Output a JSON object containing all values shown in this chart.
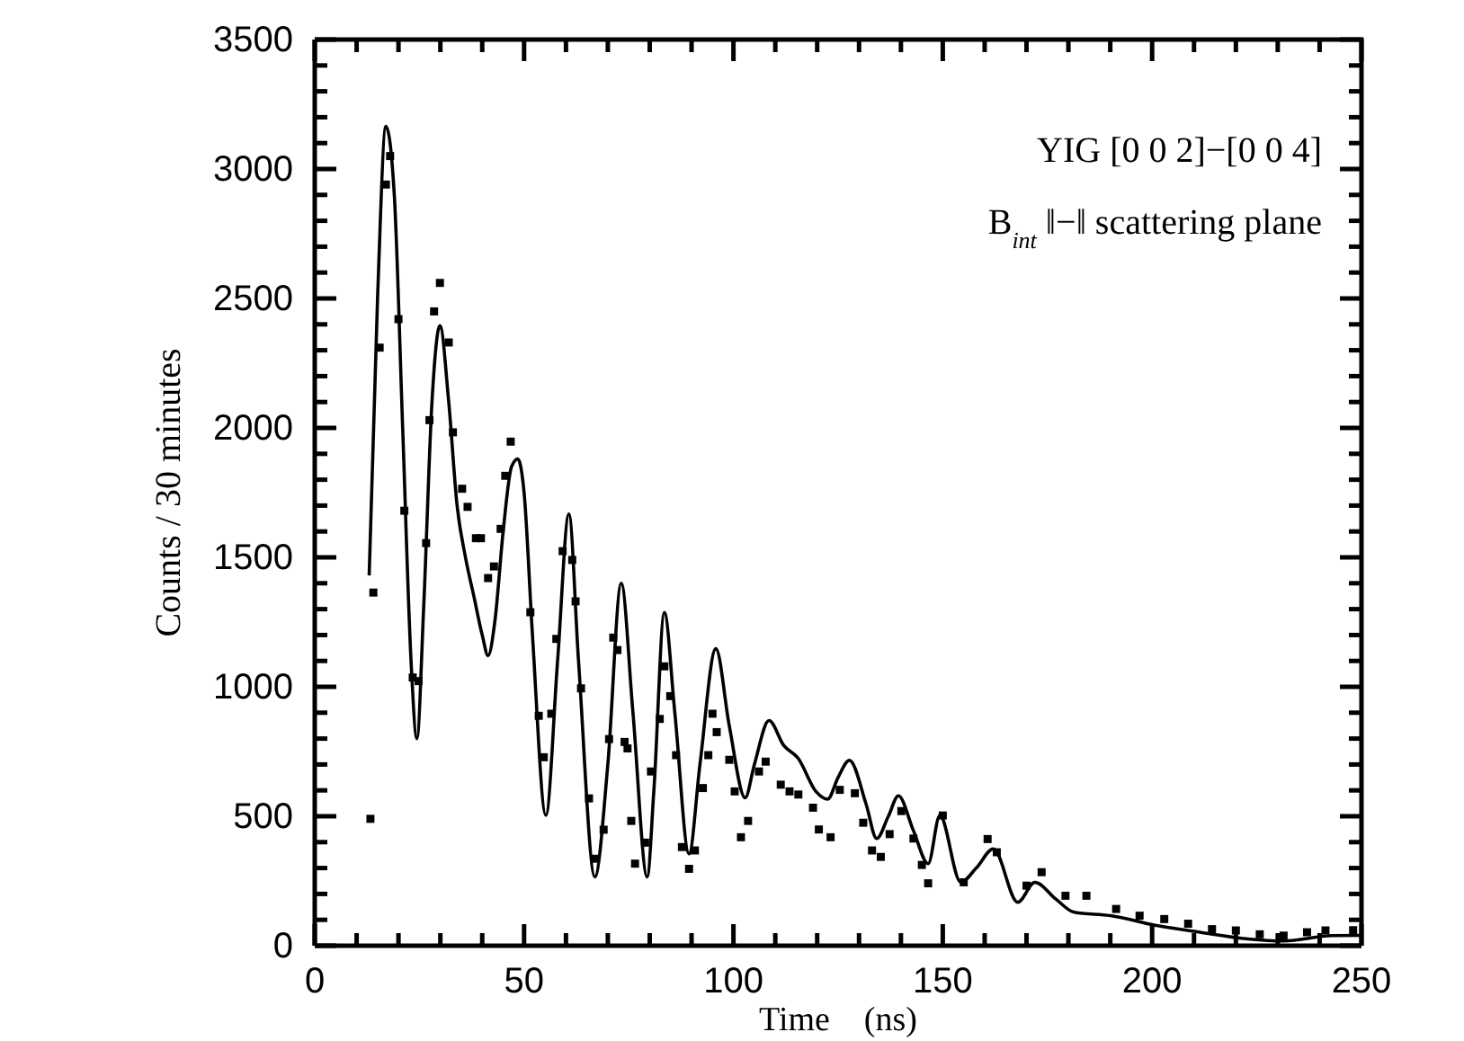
{
  "chart_data": {
    "type": "scatter",
    "xlabel": "Time    (ns)",
    "ylabel": "Counts / 30 minutes",
    "annotations": [
      "YIG [0 0 2]−[0 0 4]",
      "B$_{int}$ ‖−‖ scattering plane"
    ],
    "xlim": [
      0,
      250
    ],
    "ylim": [
      0,
      3500
    ],
    "xticks": [
      0,
      {
        "value": 10,
        "label": null
      },
      {
        "value": 20,
        "label": null
      },
      {
        "value": 30,
        "label": null
      },
      {
        "value": 40,
        "label": null
      },
      50,
      {
        "value": 60,
        "label": null
      },
      {
        "value": 70,
        "label": null
      },
      {
        "value": 80,
        "label": null
      },
      {
        "value": 90,
        "label": null
      },
      100,
      {
        "value": 110,
        "label": null
      },
      {
        "value": 120,
        "label": null
      },
      {
        "value": 130,
        "label": null
      },
      {
        "value": 140,
        "label": null
      },
      150,
      {
        "value": 160,
        "label": null
      },
      {
        "value": 170,
        "label": null
      },
      {
        "value": 180,
        "label": null
      },
      {
        "value": 190,
        "label": null
      },
      200,
      {
        "value": 210,
        "label": null
      },
      {
        "value": 220,
        "label": null
      },
      {
        "value": 230,
        "label": null
      },
      {
        "value": 240,
        "label": null
      },
      250
    ],
    "yticks": [
      0,
      {
        "value": 100,
        "label": null
      },
      {
        "value": 200,
        "label": null
      },
      {
        "value": 300,
        "label": null
      },
      {
        "value": 400,
        "label": null
      },
      500,
      {
        "value": 600,
        "label": null
      },
      {
        "value": 700,
        "label": null
      },
      {
        "value": 800,
        "label": null
      },
      {
        "value": 900,
        "label": null
      },
      1000,
      {
        "value": 1100,
        "label": null
      },
      {
        "value": 1200,
        "label": null
      },
      {
        "value": 1300,
        "label": null
      },
      {
        "value": 1400,
        "label": null
      },
      1500,
      {
        "value": 1600,
        "label": null
      },
      {
        "value": 1700,
        "label": null
      },
      {
        "value": 1800,
        "label": null
      },
      {
        "value": 1900,
        "label": null
      },
      2000,
      {
        "value": 2100,
        "label": null
      },
      {
        "value": 2200,
        "label": null
      },
      {
        "value": 2300,
        "label": null
      },
      {
        "value": 2400,
        "label": null
      },
      2500,
      {
        "value": 2600,
        "label": null
      },
      {
        "value": 2700,
        "label": null
      },
      {
        "value": 2800,
        "label": null
      },
      {
        "value": 2900,
        "label": null
      },
      3000,
      {
        "value": 3100,
        "label": null
      },
      {
        "value": 3200,
        "label": null
      },
      {
        "value": 3300,
        "label": null
      },
      {
        "value": 3400,
        "label": null
      },
      3500
    ],
    "grid": false,
    "series": [
      {
        "color": "#000000",
        "marker": "square",
        "x": [
          13.3,
          14,
          15.5,
          17,
          18,
          20,
          21.4,
          23.4,
          24.8,
          26.6,
          27.4,
          28.5,
          29.9,
          32,
          33,
          35.2,
          36.5,
          38.5,
          39.7,
          41.4,
          42.8,
          44.4,
          45.5,
          46.8,
          51.5,
          53.5,
          54.7,
          56.5,
          57.7,
          59.2,
          61.5,
          62.3,
          63.6,
          65.5,
          66.9,
          69,
          70.3,
          71.3,
          72.3,
          74,
          74.7,
          75.6,
          76.5,
          78.9,
          80.3,
          82.4,
          83.5,
          84.9,
          86.3,
          87.7,
          89.4,
          90.8,
          92.7,
          94,
          95,
          96,
          99,
          100.3,
          101.8,
          103.5,
          106.1,
          107.7,
          111.3,
          113.4,
          115.5,
          119,
          120.4,
          123.2,
          125.4,
          129,
          131,
          133.1,
          135.2,
          137.3,
          140.1,
          143,
          145,
          146.5,
          150,
          155,
          160.7,
          162.9,
          170,
          173.6,
          179.3,
          184.3,
          191.4,
          197,
          202.9,
          208.6,
          214.3,
          220,
          225.7,
          231.4,
          237,
          241.4,
          248
        ],
        "values": [
          490,
          1364,
          2310,
          2940,
          3050,
          2420,
          1680,
          1036,
          1022,
          1555,
          2030,
          2450,
          2560,
          2330,
          1983,
          1765,
          1695,
          1574,
          1574,
          1420,
          1465,
          1610,
          1815,
          1947,
          1288,
          888,
          728,
          896,
          1185,
          1524,
          1490,
          1330,
          994,
          569,
          336,
          448,
          798,
          1190,
          1142,
          787,
          762,
          482,
          317,
          398,
          673,
          876,
          1079,
          964,
          736,
          381,
          297,
          368,
          609,
          736,
          896,
          825,
          718,
          596,
          419,
          482,
          673,
          711,
          622,
          596,
          584,
          533,
          449,
          419,
          602,
          589,
          475,
          368,
          343,
          431,
          520,
          414,
          312,
          241,
          503,
          245,
          412,
          361,
          232,
          284,
          193,
          193,
          142,
          116,
          103,
          85,
          64,
          59,
          44,
          39,
          52,
          59,
          60
        ]
      },
      {
        "type": "line",
        "color": "#000000",
        "x": [
          13,
          15,
          17,
          19,
          21,
          23,
          24.4,
          26,
          28,
          29.9,
          32,
          34,
          36,
          38,
          40,
          41.4,
          43,
          45,
          47,
          48.5,
          50,
          52,
          55.2,
          58,
          60.7,
          63,
          66.9,
          70,
          73.2,
          76,
          79.4,
          81,
          83.5,
          86,
          89.4,
          92,
          95.8,
          99,
          102.8,
          105,
          108.5,
          112,
          115.5,
          119.7,
          122.5,
          125,
          127.7,
          131.7,
          134.2,
          137,
          139.4,
          143,
          146.5,
          149.3,
          154.3,
          158,
          162.1,
          167.9,
          172,
          177,
          181.4,
          190,
          201.4,
          211.4,
          222.9,
          231.4,
          243,
          250
        ],
        "values": [
          1430,
          2500,
          3165,
          2900,
          2000,
          1100,
          800,
          1300,
          2100,
          2395,
          2100,
          1700,
          1500,
          1350,
          1200,
          1120,
          1250,
          1600,
          1850,
          1880,
          1750,
          1200,
          504,
          1100,
          1667,
          1100,
          266,
          700,
          1400,
          900,
          266,
          600,
          1287,
          900,
          355,
          700,
          1147,
          850,
          571,
          700,
          870,
          774,
          723,
          596,
          566,
          650,
          716,
          546,
          414,
          500,
          579,
          444,
          317,
          503,
          245,
          300,
          374,
          168,
          245,
          180,
          129,
          116,
          77,
          52,
          26,
          18,
          39,
          40
        ]
      }
    ]
  }
}
